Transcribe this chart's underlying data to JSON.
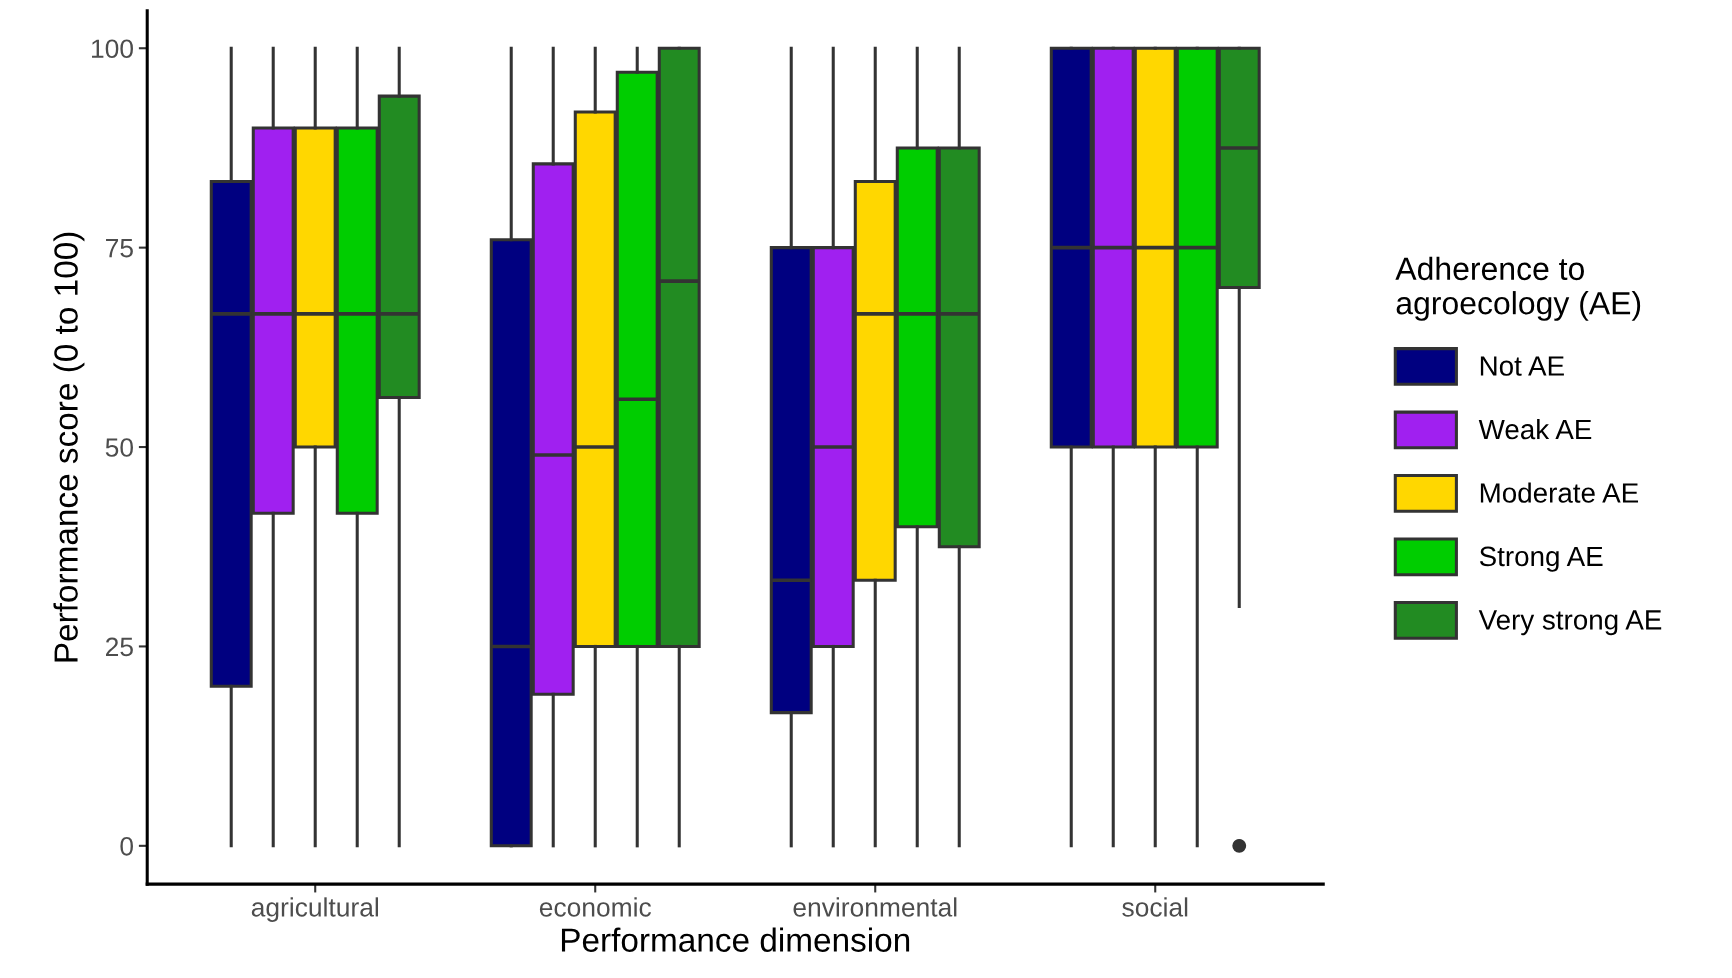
{
  "chart_data": {
    "type": "box",
    "xlabel": "Performance dimension",
    "ylabel": "Performance score (0 to 100)",
    "legend_title": "Adherence to\nagroecology (AE)",
    "legend": "right",
    "categories": [
      "agricultural",
      "economic",
      "environmental",
      "social"
    ],
    "ylim": [
      -4.8,
      104.7
    ],
    "yticks": [
      0,
      25,
      50,
      75,
      100
    ],
    "series": [
      {
        "name": "Not AE",
        "color": "#000080",
        "boxes": [
          {
            "low": 0,
            "q1": 20,
            "median": 66.7,
            "q3": 83.3,
            "high": 100
          },
          {
            "low": 0,
            "q1": 0,
            "median": 25,
            "q3": 76,
            "high": 100
          },
          {
            "low": 0,
            "q1": 16.7,
            "median": 33.3,
            "q3": 75,
            "high": 100
          },
          {
            "low": 0,
            "q1": 50,
            "median": 75,
            "q3": 100,
            "high": 100
          }
        ]
      },
      {
        "name": "Weak AE",
        "color": "#a020f0",
        "boxes": [
          {
            "low": 0,
            "q1": 41.7,
            "median": 66.7,
            "q3": 90,
            "high": 100
          },
          {
            "low": 0,
            "q1": 19,
            "median": 49,
            "q3": 85.5,
            "high": 100
          },
          {
            "low": 0,
            "q1": 25,
            "median": 50,
            "q3": 75,
            "high": 100
          },
          {
            "low": 0,
            "q1": 50,
            "median": 75,
            "q3": 100,
            "high": 100
          }
        ]
      },
      {
        "name": "Moderate AE",
        "color": "#ffd700",
        "boxes": [
          {
            "low": 0,
            "q1": 50,
            "median": 66.7,
            "q3": 90,
            "high": 100
          },
          {
            "low": 0,
            "q1": 25,
            "median": 50,
            "q3": 92,
            "high": 100
          },
          {
            "low": 0,
            "q1": 33.3,
            "median": 66.7,
            "q3": 83.3,
            "high": 100
          },
          {
            "low": 0,
            "q1": 50,
            "median": 75,
            "q3": 100,
            "high": 100
          }
        ]
      },
      {
        "name": "Strong AE",
        "color": "#00cd00",
        "boxes": [
          {
            "low": 0,
            "q1": 41.7,
            "median": 66.7,
            "q3": 90,
            "high": 100
          },
          {
            "low": 0,
            "q1": 25,
            "median": 56,
            "q3": 97,
            "high": 100
          },
          {
            "low": 0,
            "q1": 40,
            "median": 66.7,
            "q3": 87.5,
            "high": 100
          },
          {
            "low": 0,
            "q1": 50,
            "median": 75,
            "q3": 100,
            "high": 100
          }
        ]
      },
      {
        "name": "Very strong AE",
        "color": "#228b22",
        "boxes": [
          {
            "low": 0,
            "q1": 56.2,
            "median": 66.7,
            "q3": 94,
            "high": 100
          },
          {
            "low": 0,
            "q1": 25,
            "median": 70.8,
            "q3": 100,
            "high": 100
          },
          {
            "low": 0,
            "q1": 37.5,
            "median": 66.7,
            "q3": 87.5,
            "high": 100
          },
          {
            "low": 30,
            "q1": 70,
            "median": 87.5,
            "q3": 100,
            "high": 100,
            "outliers": [
              0
            ]
          }
        ]
      }
    ]
  }
}
